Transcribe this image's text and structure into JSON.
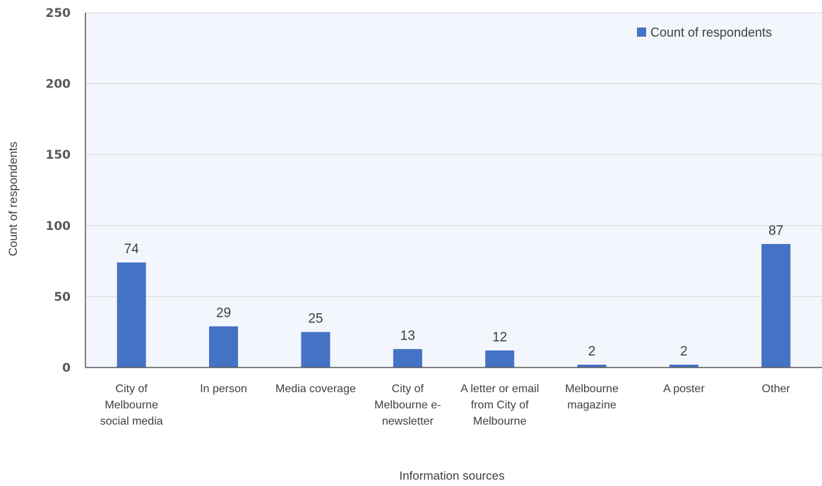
{
  "chart_data": {
    "type": "bar",
    "title": "",
    "xlabel": "Information sources",
    "ylabel": "Count of respondents",
    "ylim": [
      0,
      250
    ],
    "yticks": [
      0,
      50,
      100,
      150,
      200,
      250
    ],
    "grid": true,
    "legend_position": "top-right",
    "categories": [
      [
        "City of",
        "Melbourne",
        "social media"
      ],
      [
        "In person"
      ],
      [
        "Media coverage"
      ],
      [
        "City of",
        "Melbourne e-",
        "newsletter"
      ],
      [
        "A letter or email",
        "from City of",
        "Melbourne"
      ],
      [
        "Melbourne",
        "magazine"
      ],
      [
        "A poster"
      ],
      [
        "Other"
      ]
    ],
    "series": [
      {
        "name": "Count of respondents",
        "values": [
          74,
          29,
          25,
          13,
          12,
          2,
          2,
          87
        ],
        "color": "#4472C4"
      }
    ],
    "plot_background": "#F3F6FC",
    "grid_color": "#D9D9D9"
  }
}
